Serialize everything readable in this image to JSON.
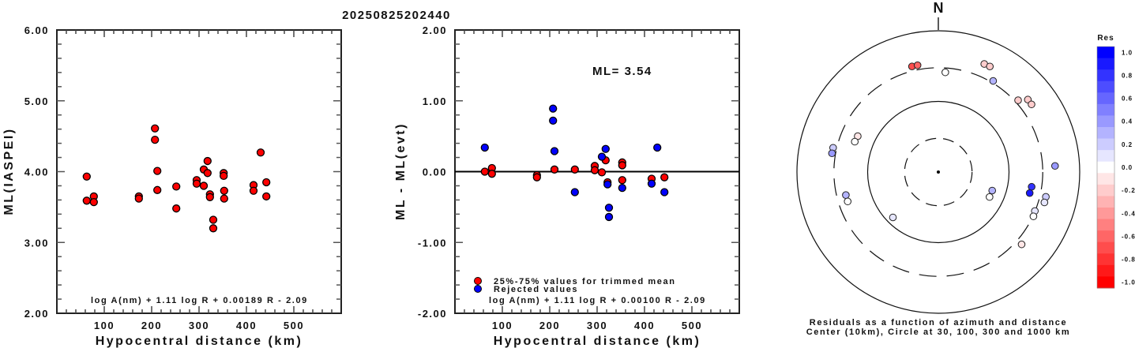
{
  "title": "20250825202440",
  "chart_data": [
    {
      "type": "scatter",
      "name": "ml-vs-distance",
      "title": "",
      "xlabel": "Hypocentral distance (km)",
      "ylabel": "ML(IASPEI)",
      "xlim": [
        0,
        600
      ],
      "ylim": [
        2.0,
        6.0
      ],
      "x_ticks": [
        100,
        200,
        300,
        400,
        500
      ],
      "x_tick_labels": [
        "100",
        "200",
        "300",
        "400",
        "500"
      ],
      "y_ticks": [
        2.0,
        3.0,
        4.0,
        5.0,
        6.0
      ],
      "y_tick_labels": [
        "2.00",
        "3.00",
        "4.00",
        "5.00",
        "6.00"
      ],
      "annotation": "log A(nm) + 1.11 log R + 0.00189 R - 2.09",
      "point_color": "#ff0000",
      "points": [
        [
          63,
          3.93
        ],
        [
          63,
          3.59
        ],
        [
          78,
          3.65
        ],
        [
          78,
          3.57
        ],
        [
          173,
          3.65
        ],
        [
          173,
          3.62
        ],
        [
          207,
          4.61
        ],
        [
          207,
          4.45
        ],
        [
          212,
          4.01
        ],
        [
          212,
          3.74
        ],
        [
          252,
          3.79
        ],
        [
          252,
          3.48
        ],
        [
          295,
          3.88
        ],
        [
          295,
          3.83
        ],
        [
          310,
          4.03
        ],
        [
          310,
          3.8
        ],
        [
          318,
          4.15
        ],
        [
          318,
          3.98
        ],
        [
          323,
          3.68
        ],
        [
          323,
          3.64
        ],
        [
          330,
          3.32
        ],
        [
          330,
          3.2
        ],
        [
          352,
          3.98
        ],
        [
          352,
          3.94
        ],
        [
          353,
          3.73
        ],
        [
          353,
          3.62
        ],
        [
          415,
          3.81
        ],
        [
          415,
          3.73
        ],
        [
          430,
          4.27
        ],
        [
          442,
          3.85
        ],
        [
          442,
          3.65
        ]
      ]
    },
    {
      "type": "scatter",
      "name": "residual-vs-distance",
      "title": "",
      "xlabel": "Hypocentral distance (km)",
      "ylabel": "ML - ML(evt)",
      "xlim": [
        0,
        600
      ],
      "ylim": [
        -2.0,
        2.0
      ],
      "x_ticks": [
        100,
        200,
        300,
        400,
        500
      ],
      "x_tick_labels": [
        "100",
        "200",
        "300",
        "400",
        "500"
      ],
      "y_ticks": [
        -2.0,
        -1.0,
        0.0,
        1.0,
        2.0
      ],
      "y_tick_labels": [
        "-2.00",
        "-1.00",
        "0.00",
        "1.00",
        "2.00"
      ],
      "reference_line": 0.0,
      "ml_label": "ML= 3.54",
      "annotation": "log A(nm) + 1.11 log R + 0.00100 R - 2.09",
      "legend": {
        "placement": "bottom-left",
        "entries": [
          {
            "label": "25%-75% values for trimmed mean",
            "color": "#ff0000"
          },
          {
            "label": "Rejected values",
            "color": "#0000ff"
          }
        ]
      },
      "series": [
        {
          "name": "25%-75% values for trimmed mean",
          "color": "#ff0000",
          "points": [
            [
              63,
              0.0
            ],
            [
              78,
              0.05
            ],
            [
              78,
              -0.03
            ],
            [
              173,
              -0.05
            ],
            [
              173,
              -0.08
            ],
            [
              210,
              0.03
            ],
            [
              253,
              0.03
            ],
            [
              295,
              0.08
            ],
            [
              295,
              0.02
            ],
            [
              310,
              -0.01
            ],
            [
              318,
              0.16
            ],
            [
              322,
              -0.15
            ],
            [
              353,
              0.13
            ],
            [
              353,
              0.09
            ],
            [
              353,
              -0.12
            ],
            [
              415,
              -0.1
            ],
            [
              442,
              -0.08
            ]
          ]
        },
        {
          "name": "Rejected values",
          "color": "#0000ff",
          "points": [
            [
              63,
              0.34
            ],
            [
              207,
              0.89
            ],
            [
              207,
              0.72
            ],
            [
              210,
              0.29
            ],
            [
              253,
              -0.29
            ],
            [
              310,
              0.21
            ],
            [
              318,
              0.32
            ],
            [
              322,
              -0.18
            ],
            [
              325,
              -0.51
            ],
            [
              325,
              -0.64
            ],
            [
              353,
              -0.23
            ],
            [
              415,
              -0.17
            ],
            [
              427,
              0.34
            ],
            [
              442,
              -0.29
            ]
          ]
        }
      ]
    },
    {
      "type": "scatter",
      "name": "residual-azimuth-polar",
      "title": "",
      "north_label": "N",
      "caption_lines": [
        "Residuals as a function of azimuth and distance",
        "Center (10km), Circle at 30, 100, 300 and 1000 km"
      ],
      "center_km": 10,
      "rings_km": [
        {
          "km": 30,
          "style": "dashed"
        },
        {
          "km": 100,
          "style": "solid"
        },
        {
          "km": 300,
          "style": "dashed"
        },
        {
          "km": 1000,
          "style": "solid"
        }
      ],
      "points_az_dist_res": [
        [
          346,
          347,
          -0.7
        ],
        [
          349,
          347,
          -0.6
        ],
        [
          4,
          260,
          0.0
        ],
        [
          23,
          460,
          -0.2
        ],
        [
          26,
          460,
          -0.25
        ],
        [
          31,
          320,
          0.3
        ],
        [
          48,
          330,
          -0.2
        ],
        [
          51,
          426,
          -0.2
        ],
        [
          54,
          426,
          -0.2
        ],
        [
          294,
          177,
          -0.1
        ],
        [
          290,
          181,
          -0.05
        ],
        [
          283,
          337,
          0.2
        ],
        [
          280,
          337,
          0.35
        ],
        [
          256,
          223,
          0.3
        ],
        [
          252,
          223,
          0.0
        ],
        [
          225,
          81,
          0.05
        ],
        [
          87,
          450,
          0.35
        ],
        [
          109,
          64,
          0.3
        ],
        [
          116,
          64,
          0.0
        ],
        [
          99,
          217,
          0.75
        ],
        [
          103,
          212,
          0.85
        ],
        [
          103,
          364,
          0.15
        ],
        [
          106,
          364,
          0.1
        ],
        [
          112,
          297,
          0.1
        ],
        [
          115,
          305,
          0.0
        ],
        [
          131,
          364,
          -0.1
        ]
      ],
      "colorbar": {
        "title": "Res",
        "range": [
          -1.0,
          1.0
        ],
        "tick_labels": [
          "1.0",
          "0.8",
          "0.6",
          "0.4",
          "0.2",
          "0.0",
          "-0.2",
          "-0.4",
          "-0.6",
          "-0.8",
          "-1.0"
        ],
        "positive_color": "#0000ff",
        "negative_color": "#ff0000",
        "neutral_color": "#ffffff"
      }
    }
  ]
}
